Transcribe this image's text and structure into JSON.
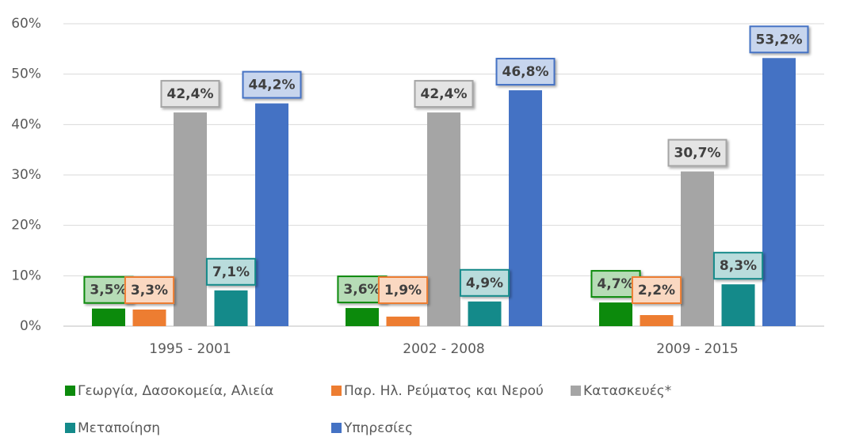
{
  "chart_data": {
    "type": "bar",
    "categories": [
      "1995 - 2001",
      "2002 - 2008",
      "2009 - 2015"
    ],
    "series": [
      {
        "name": "Γεωργία, Δασοκομεία, Αλιεία",
        "color": "#0c8a0c",
        "values": [
          3.5,
          3.6,
          4.7
        ],
        "value_labels": [
          "3,5%",
          "3,6%",
          "4,7%"
        ]
      },
      {
        "name": "Παρ. Ηλ. Ρεύματος και Νερού",
        "color": "#ed7d31",
        "values": [
          3.3,
          1.9,
          2.2
        ],
        "value_labels": [
          "3,3%",
          "1,9%",
          "2,2%"
        ]
      },
      {
        "name": "Κατασκευές*",
        "color": "#a5a5a5",
        "values": [
          42.4,
          42.4,
          30.7
        ],
        "value_labels": [
          "42,4%",
          "42,4%",
          "30,7%"
        ]
      },
      {
        "name": "Μεταποίηση",
        "color": "#148a8a",
        "values": [
          7.1,
          4.9,
          8.3
        ],
        "value_labels": [
          "7,1%",
          "4,9%",
          "8,3%"
        ]
      },
      {
        "name": "Υπηρεσίες",
        "color": "#4472c4",
        "values": [
          44.2,
          46.8,
          53.2
        ],
        "value_labels": [
          "44,2%",
          "46,8%",
          "53,2%"
        ]
      }
    ],
    "ylim": [
      0,
      60
    ],
    "yticks": [
      {
        "value": 0,
        "label": "0%"
      },
      {
        "value": 10,
        "label": "10%"
      },
      {
        "value": 20,
        "label": "20%"
      },
      {
        "value": 30,
        "label": "30%"
      },
      {
        "value": 40,
        "label": "40%"
      },
      {
        "value": 50,
        "label": "50%"
      },
      {
        "value": 60,
        "label": "60%"
      }
    ],
    "grid": true,
    "legend": "bottom"
  }
}
